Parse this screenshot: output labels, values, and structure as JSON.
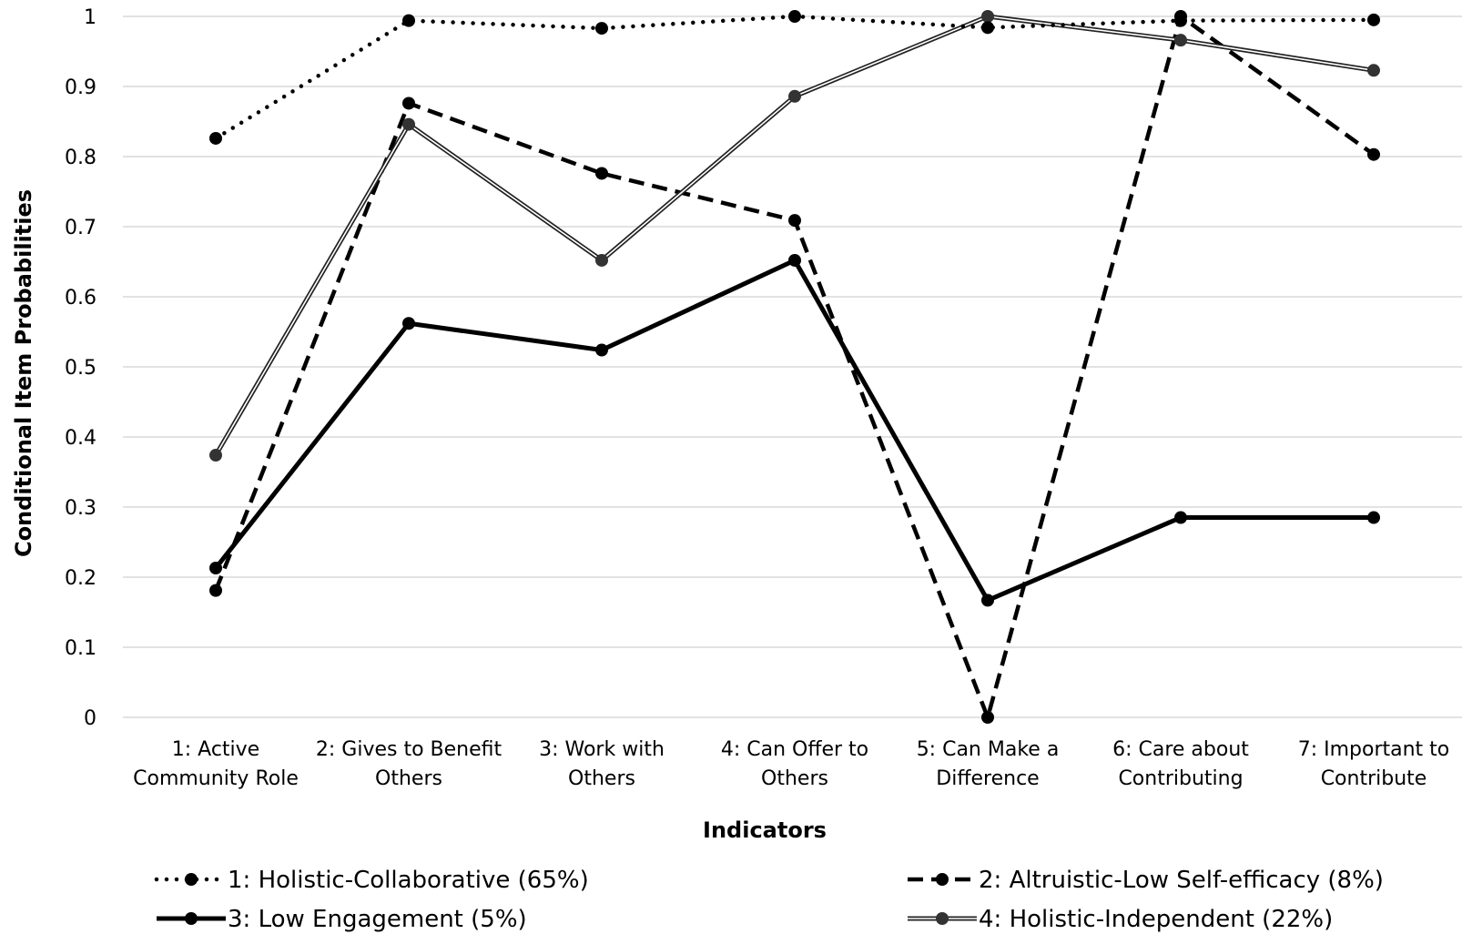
{
  "chart_data": {
    "type": "line",
    "title": "",
    "xlabel": "Indicators",
    "ylabel": "Conditional Item Probabilities",
    "ylim": [
      0,
      1
    ],
    "yticks": [
      "0",
      "0.1",
      "0.2",
      "0.3",
      "0.4",
      "0.5",
      "0.6",
      "0.7",
      "0.8",
      "0.9",
      "1"
    ],
    "grid": true,
    "legend_position": "bottom",
    "categories": [
      [
        "1: Active",
        "Community Role"
      ],
      [
        "2: Gives to Benefit",
        "Others"
      ],
      [
        "3: Work with",
        "Others"
      ],
      [
        "4: Can Offer to",
        "Others"
      ],
      [
        "5: Can Make a",
        "Difference"
      ],
      [
        "6: Care about",
        "Contributing"
      ],
      [
        "7: Important to",
        "Contribute"
      ]
    ],
    "series": [
      {
        "name": "1: Holistic-Collaborative (65%)",
        "style": "dotted",
        "color": "#000000",
        "values": [
          0.826,
          0.994,
          0.983,
          1.0,
          0.984,
          0.994,
          0.995
        ]
      },
      {
        "name": "2: Altruistic-Low Self-efficacy (8%)",
        "style": "dashed",
        "color": "#000000",
        "values": [
          0.181,
          0.876,
          0.776,
          0.709,
          0.0,
          1.0,
          0.803
        ]
      },
      {
        "name": "3: Low Engagement (5%)",
        "style": "solid",
        "color": "#000000",
        "values": [
          0.213,
          0.562,
          0.524,
          0.652,
          0.167,
          0.285,
          0.285
        ]
      },
      {
        "name": "4: Holistic-Independent (22%)",
        "style": "double",
        "color": "#333333",
        "values": [
          0.374,
          0.846,
          0.652,
          0.886,
          1.0,
          0.966,
          0.923
        ]
      }
    ]
  }
}
